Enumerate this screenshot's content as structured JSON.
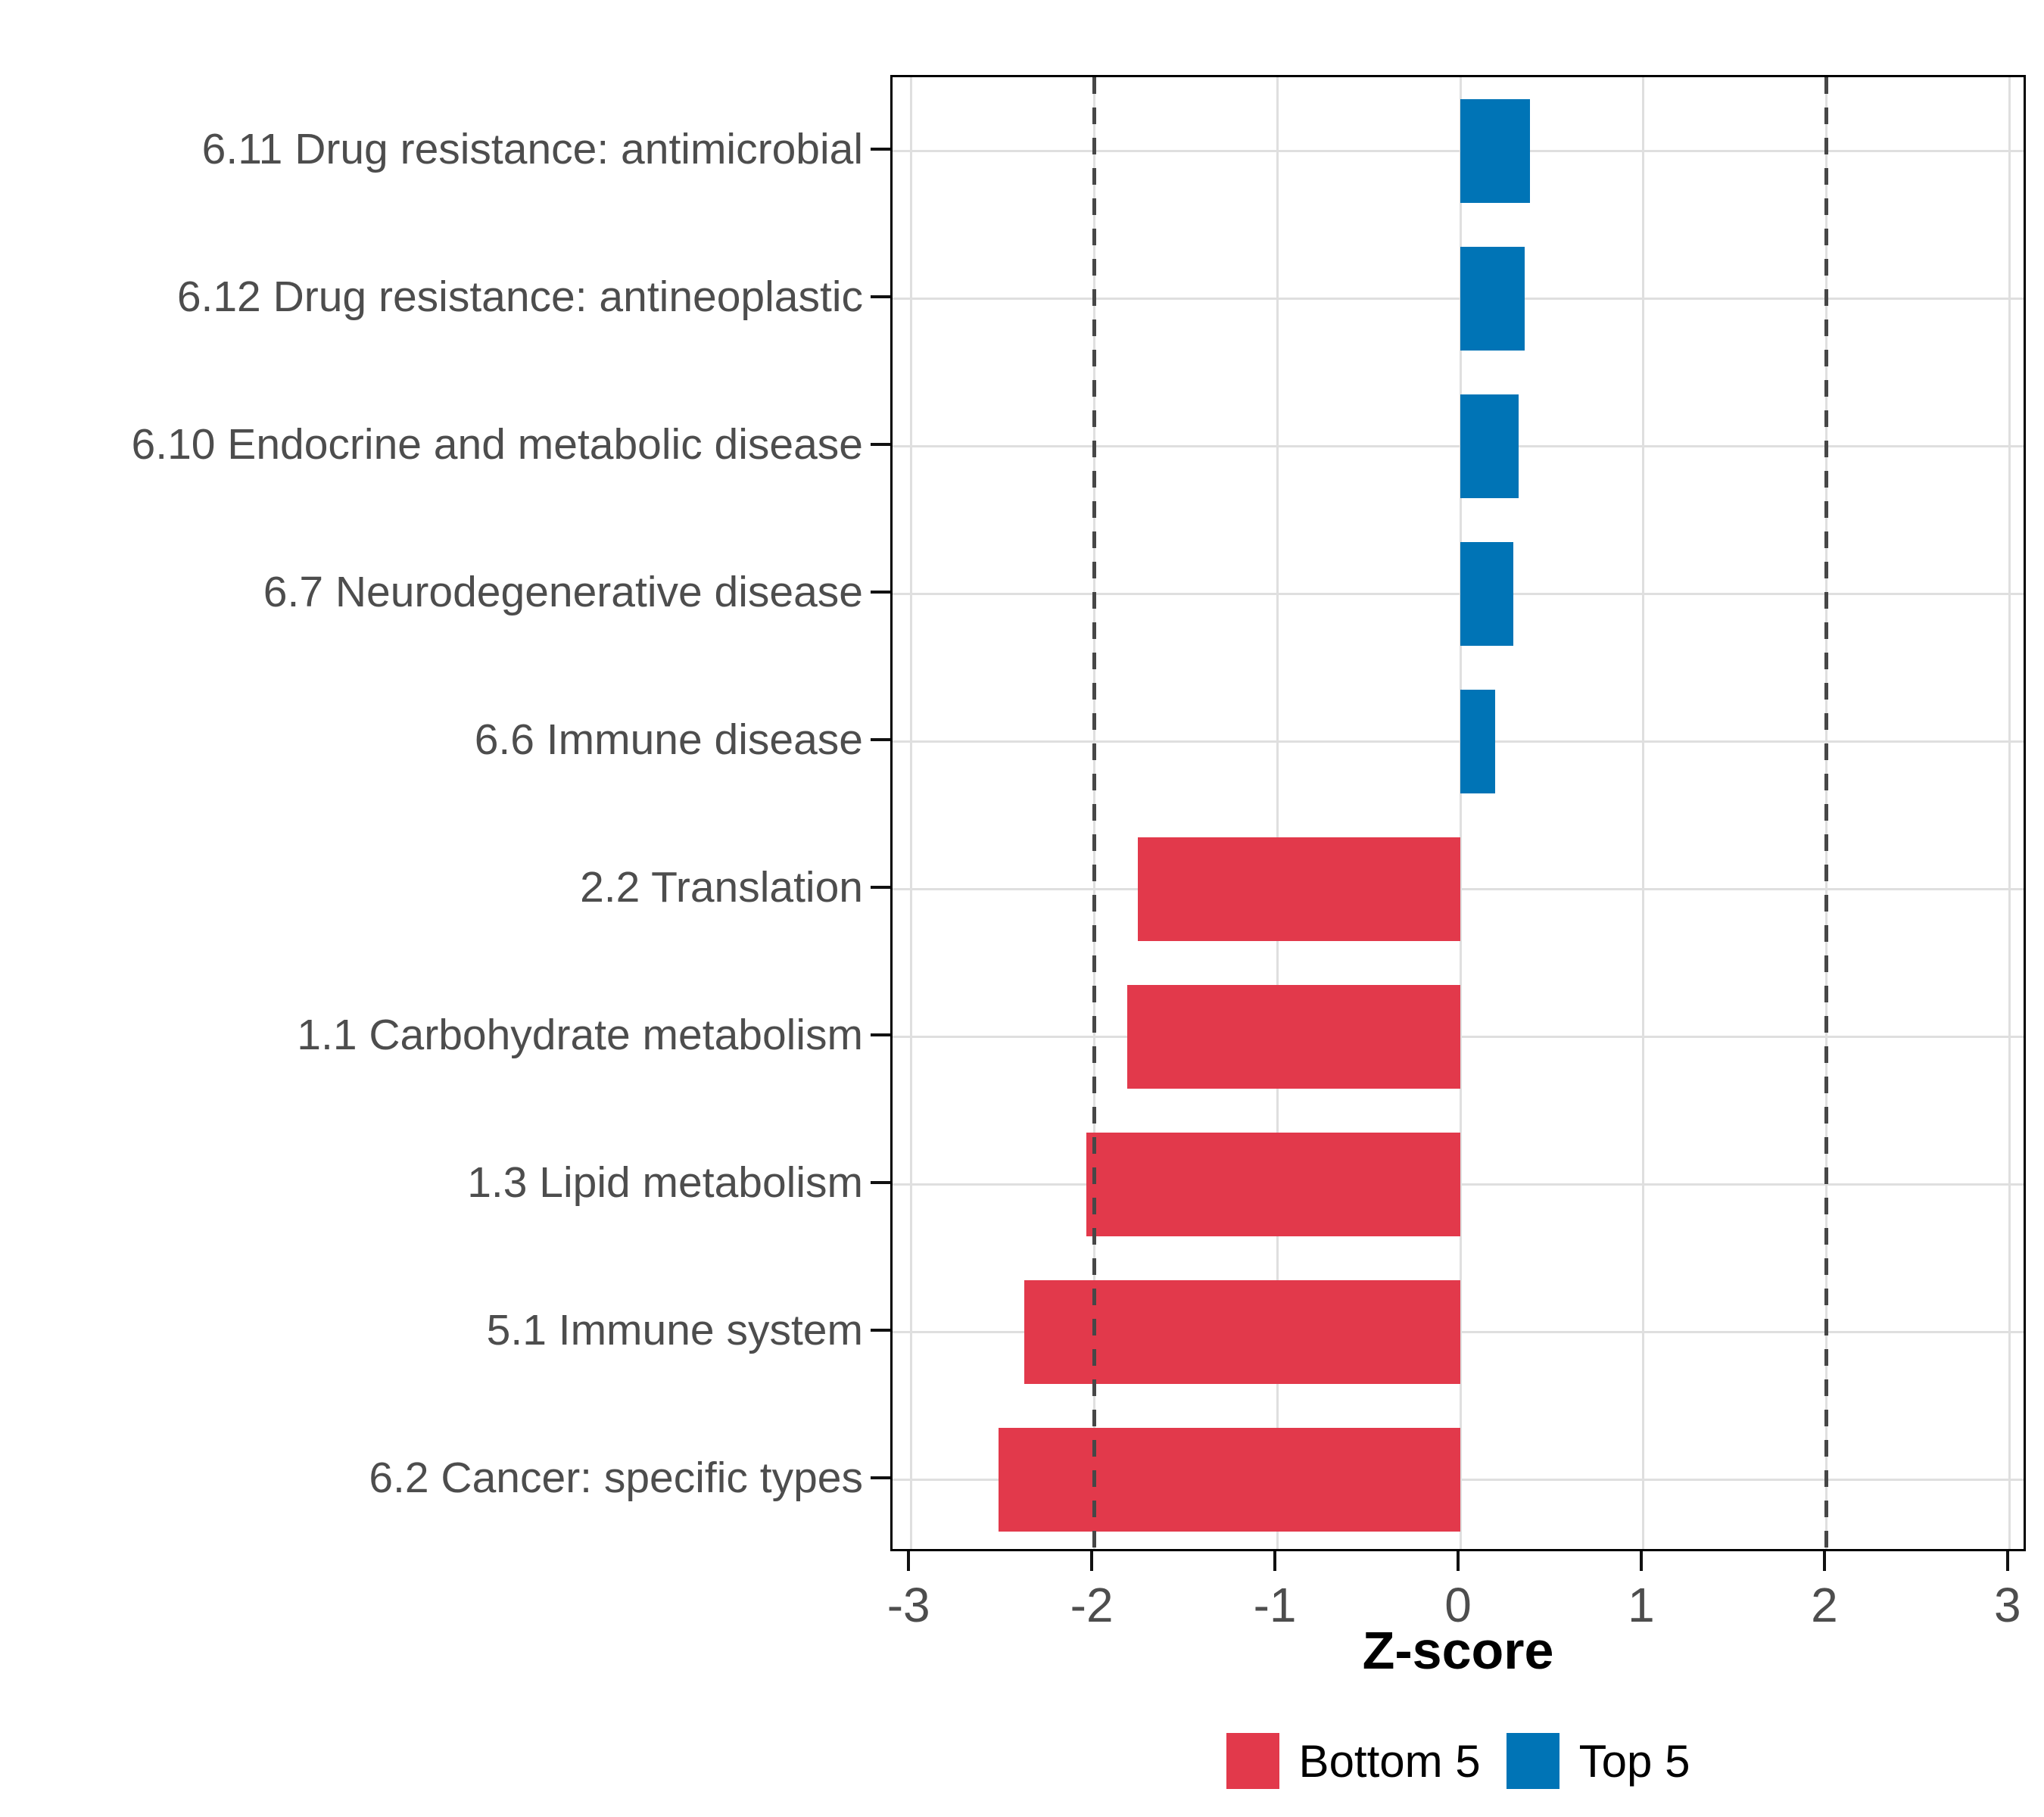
{
  "figure": {
    "background": "#FFFFFF"
  },
  "chart_data": {
    "type": "bar",
    "orientation": "horizontal",
    "title": "",
    "xlabel": "Z-score",
    "ylabel": "",
    "xlim": [
      -3.1,
      3.1
    ],
    "x_ticks": [
      -3,
      -2,
      -1,
      0,
      1,
      2,
      3
    ],
    "reference_lines": [
      -2,
      2
    ],
    "grid": true,
    "legend_position": "bottom",
    "categories": [
      "6.11 Drug resistance: antimicrobial",
      "6.12 Drug resistance: antineoplastic",
      "6.10 Endocrine and metabolic disease",
      "6.7 Neurodegenerative disease",
      "6.6 Immune disease",
      "2.2 Translation",
      "1.1 Carbohydrate metabolism",
      "1.3 Lipid metabolism",
      "5.1 Immune system",
      "6.2 Cancer: specific types"
    ],
    "values": [
      0.38,
      0.35,
      0.32,
      0.29,
      0.19,
      -1.76,
      -1.82,
      -2.04,
      -2.38,
      -2.52
    ],
    "groups": [
      "Top 5",
      "Top 5",
      "Top 5",
      "Top 5",
      "Top 5",
      "Bottom 5",
      "Bottom 5",
      "Bottom 5",
      "Bottom 5",
      "Bottom 5"
    ],
    "colors": {
      "Bottom 5": "#E2394B",
      "Top 5": "#0074B6"
    },
    "legend": [
      {
        "label": "Bottom 5",
        "color": "#E2394B"
      },
      {
        "label": "Top 5",
        "color": "#0074B6"
      }
    ],
    "style_colors": {
      "grid": "#DFDFDF",
      "reference_line": "#474747",
      "panel_border": "#000000",
      "axis_text": "#4D4D4D",
      "title_text": "#000000"
    }
  }
}
